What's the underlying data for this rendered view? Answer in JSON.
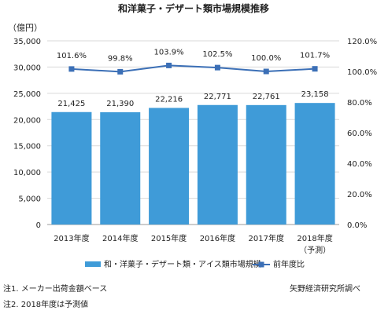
{
  "chart_data": {
    "type": "bar",
    "title": "和洋菓子・デザート類市場規模推移",
    "unit_label": "（億円）",
    "categories": [
      "2013年度",
      "2014年度",
      "2015年度",
      "2016年度",
      "2017年度",
      "2018年度"
    ],
    "category_notes": [
      "",
      "",
      "",
      "",
      "",
      "（予測）"
    ],
    "series": [
      {
        "name": "和・洋菓子・デザート類・アイス類市場規模",
        "type": "bar",
        "axis": "left",
        "values": [
          21425,
          21390,
          22216,
          22771,
          22761,
          23158
        ],
        "labels": [
          "21,425",
          "21,390",
          "22,216",
          "22,771",
          "22,761",
          "23,158"
        ],
        "color": "#3f9bd8"
      },
      {
        "name": "前年度比",
        "type": "line",
        "axis": "right",
        "values": [
          101.6,
          99.8,
          103.9,
          102.5,
          100.0,
          101.7
        ],
        "labels": [
          "101.6%",
          "99.8%",
          "103.9%",
          "102.5%",
          "100.0%",
          "101.7%"
        ],
        "color": "#3b6fb6"
      }
    ],
    "y_left": {
      "min": 0,
      "max": 35000,
      "ticks": [
        "0",
        "5,000",
        "10,000",
        "15,000",
        "20,000",
        "25,000",
        "30,000",
        "35,000"
      ]
    },
    "y_right": {
      "min": 0,
      "max": 120,
      "ticks": [
        "0.0%",
        "20.0%",
        "40.0%",
        "60.0%",
        "80.0%",
        "100.0%",
        "120.0%"
      ]
    },
    "grid": true,
    "legend_position": "bottom"
  },
  "footnotes": {
    "note1": "注1. メーカー出荷金額ベース",
    "note2": "注2. 2018年度は予測値",
    "source": "矢野経済研究所調べ"
  }
}
